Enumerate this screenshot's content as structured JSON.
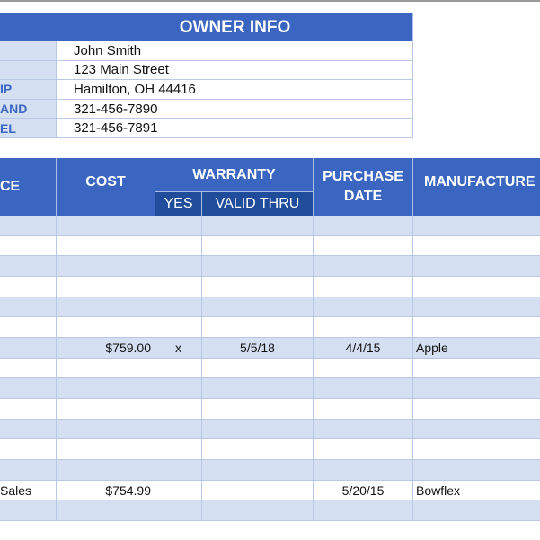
{
  "owner": {
    "title": "OWNER INFO",
    "rows": [
      {
        "label": "",
        "value": "John Smith"
      },
      {
        "label": "",
        "value": "123 Main Street"
      },
      {
        "label": "IP",
        "value": "Hamilton, OH  44416"
      },
      {
        "label": "AND",
        "value": "321-456-7890"
      },
      {
        "label": "EL",
        "value": "321-456-7891"
      }
    ]
  },
  "table": {
    "headers": {
      "col0": "CE",
      "cost": "COST",
      "warranty": "WARRANTY",
      "yes": "YES",
      "valid_thru": "VALID THRU",
      "purchase_date": "PURCHASE DATE",
      "manufacturer": "MANUFACTURE"
    },
    "rows": [
      [
        "",
        "",
        "",
        "",
        "",
        ""
      ],
      [
        "",
        "",
        "",
        "",
        "",
        ""
      ],
      [
        "",
        "",
        "",
        "",
        "",
        ""
      ],
      [
        "",
        "",
        "",
        "",
        "",
        ""
      ],
      [
        "",
        "",
        "",
        "",
        "",
        ""
      ],
      [
        "",
        "",
        "",
        "",
        "",
        ""
      ],
      [
        "",
        "$759.00",
        "x",
        "5/5/18",
        "4/4/15",
        "Apple"
      ],
      [
        "",
        "",
        "",
        "",
        "",
        ""
      ],
      [
        "",
        "",
        "",
        "",
        "",
        ""
      ],
      [
        "",
        "",
        "",
        "",
        "",
        ""
      ],
      [
        "",
        "",
        "",
        "",
        "",
        ""
      ],
      [
        "",
        "",
        "",
        "",
        "",
        ""
      ],
      [
        "",
        "",
        "",
        "",
        "",
        ""
      ],
      [
        "Sales",
        "$754.99",
        "",
        "",
        "5/20/15",
        "Bowflex"
      ],
      [
        "",
        "",
        "",
        "",
        "",
        ""
      ]
    ]
  },
  "colors": {
    "header": "#3a66c1",
    "subheader": "#1f4d9c",
    "band": "#d4dff2"
  }
}
